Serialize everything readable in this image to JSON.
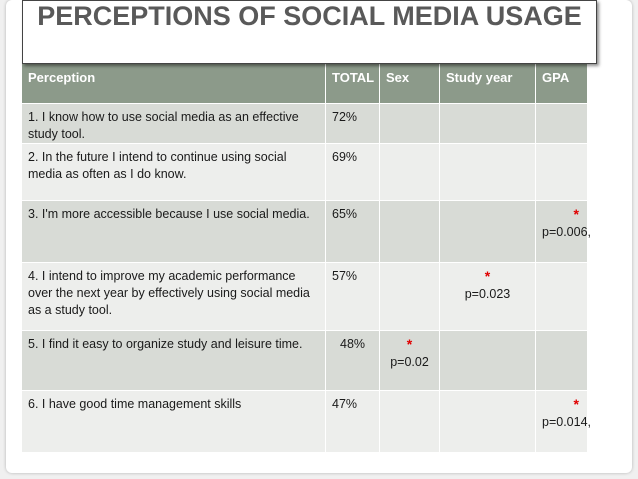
{
  "title": "PERCEPTIONS OF SOCIAL MEDIA USAGE",
  "headers": {
    "perception": "Perception",
    "total": "TOTAL",
    "sex": "Sex",
    "study_year": "Study year",
    "gpa": "GPA"
  },
  "rows": [
    {
      "perception": "1. I know how to use social media as an effective study tool.",
      "total": "72%",
      "sex": "",
      "sex_p": "",
      "study_year": "",
      "study_year_p": "",
      "gpa": "",
      "gpa_p": ""
    },
    {
      "perception": "2. In the future I intend to continue using social media as often as I do know.",
      "total": "69%",
      "sex": "",
      "sex_p": "",
      "study_year": "",
      "study_year_p": "",
      "gpa": "",
      "gpa_p": ""
    },
    {
      "perception": "3. I'm more accessible because I use social media.",
      "total": "65%",
      "sex": "",
      "sex_p": "",
      "study_year": "",
      "study_year_p": "",
      "gpa": "*",
      "gpa_p": "p=0.006,"
    },
    {
      "perception": "4. I intend to improve my academic performance over the next year by effectively using social media as a study tool.",
      "total": "57%",
      "sex": "",
      "sex_p": "",
      "study_year": "*",
      "study_year_p": "p=0.023",
      "gpa": "",
      "gpa_p": ""
    },
    {
      "perception": "5. I find it easy to organize study and leisure time.",
      "total": "48%",
      "sex": "*",
      "sex_p": "p=0.02",
      "study_year": "",
      "study_year_p": "",
      "gpa": "",
      "gpa_p": ""
    },
    {
      "perception": "6. I have good time management skills",
      "total": "47%",
      "sex": "",
      "sex_p": "",
      "study_year": "",
      "study_year_p": "",
      "gpa": "*",
      "gpa_p": "p=0.014,"
    }
  ],
  "colors": {
    "header_bg": "#8c9a8a",
    "row_odd": "#d8dbd6",
    "row_even": "#edeeec",
    "significance_star": "#e00000",
    "title": "#595959"
  }
}
